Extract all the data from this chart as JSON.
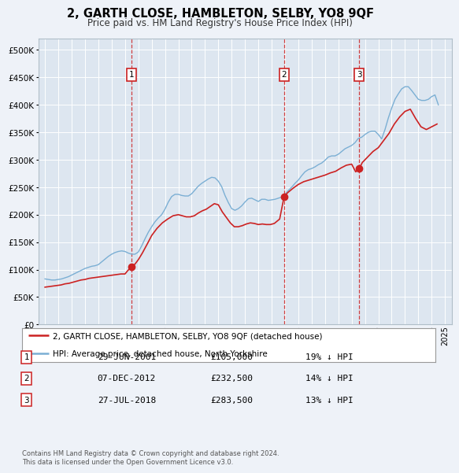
{
  "title": "2, GARTH CLOSE, HAMBLETON, SELBY, YO8 9QF",
  "subtitle": "Price paid vs. HM Land Registry's House Price Index (HPI)",
  "background_color": "#eef2f8",
  "plot_bg_color": "#dde6f0",
  "legend_label_red": "2, GARTH CLOSE, HAMBLETON, SELBY, YO8 9QF (detached house)",
  "legend_label_blue": "HPI: Average price, detached house, North Yorkshire",
  "footer": "Contains HM Land Registry data © Crown copyright and database right 2024.\nThis data is licensed under the Open Government Licence v3.0.",
  "transactions": [
    {
      "num": 1,
      "date": "29-JUN-2001",
      "price": "£105,000",
      "pct": "19%",
      "direction": "↓",
      "x_year": 2001.49,
      "y_val": 105000
    },
    {
      "num": 2,
      "date": "07-DEC-2012",
      "price": "£232,500",
      "pct": "14%",
      "direction": "↓",
      "x_year": 2012.93,
      "y_val": 232500
    },
    {
      "num": 3,
      "date": "27-JUL-2018",
      "price": "£283,500",
      "pct": "13%",
      "direction": "↓",
      "x_year": 2018.56,
      "y_val": 283500
    }
  ],
  "ylim": [
    0,
    520000
  ],
  "yticks": [
    0,
    50000,
    100000,
    150000,
    200000,
    250000,
    300000,
    350000,
    400000,
    450000,
    500000
  ],
  "xlim": [
    1994.5,
    2025.5
  ],
  "xticks": [
    1995,
    1996,
    1997,
    1998,
    1999,
    2000,
    2001,
    2002,
    2003,
    2004,
    2005,
    2006,
    2007,
    2008,
    2009,
    2010,
    2011,
    2012,
    2013,
    2014,
    2015,
    2016,
    2017,
    2018,
    2019,
    2020,
    2021,
    2022,
    2023,
    2024,
    2025
  ],
  "hpi_data": {
    "years": [
      1995.0,
      1995.25,
      1995.5,
      1995.75,
      1996.0,
      1996.25,
      1996.5,
      1996.75,
      1997.0,
      1997.25,
      1997.5,
      1997.75,
      1998.0,
      1998.25,
      1998.5,
      1998.75,
      1999.0,
      1999.25,
      1999.5,
      1999.75,
      2000.0,
      2000.25,
      2000.5,
      2000.75,
      2001.0,
      2001.25,
      2001.5,
      2001.75,
      2002.0,
      2002.25,
      2002.5,
      2002.75,
      2003.0,
      2003.25,
      2003.5,
      2003.75,
      2004.0,
      2004.25,
      2004.5,
      2004.75,
      2005.0,
      2005.25,
      2005.5,
      2005.75,
      2006.0,
      2006.25,
      2006.5,
      2006.75,
      2007.0,
      2007.25,
      2007.5,
      2007.75,
      2008.0,
      2008.25,
      2008.5,
      2008.75,
      2009.0,
      2009.25,
      2009.5,
      2009.75,
      2010.0,
      2010.25,
      2010.5,
      2010.75,
      2011.0,
      2011.25,
      2011.5,
      2011.75,
      2012.0,
      2012.25,
      2012.5,
      2012.75,
      2013.0,
      2013.25,
      2013.5,
      2013.75,
      2014.0,
      2014.25,
      2014.5,
      2014.75,
      2015.0,
      2015.25,
      2015.5,
      2015.75,
      2016.0,
      2016.25,
      2016.5,
      2016.75,
      2017.0,
      2017.25,
      2017.5,
      2017.75,
      2018.0,
      2018.25,
      2018.5,
      2018.75,
      2019.0,
      2019.25,
      2019.5,
      2019.75,
      2020.0,
      2020.25,
      2020.5,
      2020.75,
      2021.0,
      2021.25,
      2021.5,
      2021.75,
      2022.0,
      2022.25,
      2022.5,
      2022.75,
      2023.0,
      2023.25,
      2023.5,
      2023.75,
      2024.0,
      2024.25,
      2024.5
    ],
    "values": [
      83000,
      82000,
      81000,
      81000,
      82000,
      83000,
      85000,
      87000,
      90000,
      93000,
      96000,
      99000,
      102000,
      104000,
      106000,
      107000,
      109000,
      114000,
      119000,
      124000,
      128000,
      131000,
      133000,
      134000,
      133000,
      130000,
      128000,
      128000,
      132000,
      143000,
      156000,
      168000,
      178000,
      187000,
      194000,
      200000,
      210000,
      223000,
      233000,
      237000,
      237000,
      235000,
      234000,
      234000,
      238000,
      245000,
      252000,
      257000,
      261000,
      265000,
      268000,
      267000,
      261000,
      251000,
      235000,
      222000,
      211000,
      208000,
      211000,
      216000,
      223000,
      229000,
      230000,
      227000,
      224000,
      228000,
      228000,
      226000,
      227000,
      228000,
      230000,
      232000,
      237000,
      244000,
      250000,
      257000,
      263000,
      271000,
      278000,
      282000,
      284000,
      287000,
      291000,
      294000,
      299000,
      305000,
      307000,
      307000,
      310000,
      315000,
      320000,
      323000,
      326000,
      331000,
      339000,
      341000,
      346000,
      350000,
      352000,
      352000,
      346000,
      338000,
      355000,
      376000,
      394000,
      410000,
      420000,
      429000,
      433000,
      433000,
      426000,
      418000,
      410000,
      408000,
      408000,
      410000,
      415000,
      418000,
      400000
    ],
    "color": "#7bafd4"
  },
  "price_data": {
    "years": [
      1995.0,
      1995.3,
      1995.6,
      1995.9,
      1996.2,
      1996.5,
      1996.8,
      1997.1,
      1997.4,
      1997.7,
      1998.0,
      1998.3,
      1998.6,
      1998.9,
      1999.2,
      1999.5,
      1999.8,
      2000.1,
      2000.4,
      2000.7,
      2001.0,
      2001.2,
      2001.49,
      2001.75,
      2002.0,
      2002.3,
      2002.7,
      2003.0,
      2003.4,
      2003.8,
      2004.2,
      2004.6,
      2005.0,
      2005.3,
      2005.6,
      2005.9,
      2006.2,
      2006.5,
      2006.8,
      2007.1,
      2007.4,
      2007.7,
      2008.0,
      2008.3,
      2008.6,
      2008.9,
      2009.2,
      2009.5,
      2009.8,
      2010.1,
      2010.4,
      2010.7,
      2011.0,
      2011.3,
      2011.6,
      2011.9,
      2012.2,
      2012.6,
      2012.93,
      2013.2,
      2013.6,
      2014.0,
      2014.4,
      2014.8,
      2015.2,
      2015.6,
      2016.0,
      2016.4,
      2016.8,
      2017.2,
      2017.6,
      2018.0,
      2018.3,
      2018.56,
      2018.8,
      2019.2,
      2019.6,
      2020.0,
      2020.4,
      2020.8,
      2021.2,
      2021.6,
      2022.0,
      2022.4,
      2022.8,
      2023.2,
      2023.6,
      2024.0,
      2024.4
    ],
    "values": [
      68000,
      69000,
      70000,
      71000,
      72000,
      74000,
      75000,
      77000,
      79000,
      81000,
      82000,
      84000,
      85000,
      86000,
      87000,
      88000,
      89000,
      90000,
      91000,
      92000,
      92000,
      98000,
      105000,
      110000,
      118000,
      130000,
      148000,
      162000,
      175000,
      185000,
      192000,
      198000,
      200000,
      198000,
      196000,
      196000,
      198000,
      203000,
      207000,
      210000,
      215000,
      220000,
      218000,
      205000,
      195000,
      185000,
      178000,
      178000,
      180000,
      183000,
      185000,
      184000,
      182000,
      183000,
      182000,
      182000,
      184000,
      192000,
      232500,
      240000,
      248000,
      255000,
      260000,
      263000,
      266000,
      269000,
      272000,
      276000,
      279000,
      285000,
      290000,
      292000,
      278000,
      283500,
      295000,
      305000,
      315000,
      322000,
      335000,
      348000,
      365000,
      378000,
      388000,
      392000,
      375000,
      360000,
      355000,
      360000,
      365000
    ],
    "color": "#cc2222"
  }
}
